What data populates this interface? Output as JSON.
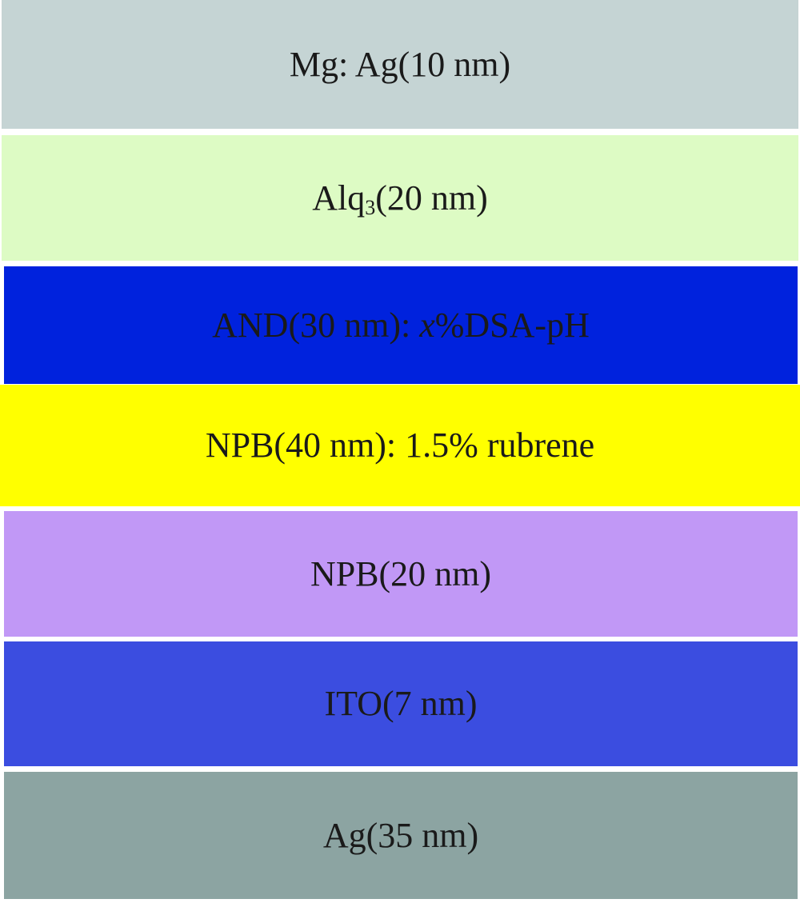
{
  "layers": [
    {
      "label": "Mg: Ag(10 nm)",
      "color": "#c5d4d4"
    },
    {
      "label_pre": "Alq",
      "label_sub": "3",
      "label_post": "(20 nm)",
      "color": "#ddfbc4"
    },
    {
      "label_pre": "AND(30 nm): ",
      "label_italic": "x",
      "label_post": "%DSA-pH",
      "color": "#0022dd"
    },
    {
      "label": "NPB(40 nm): 1.5% rubrene",
      "color": "#ffff00"
    },
    {
      "label": "NPB(20 nm)",
      "color": "#c198f6"
    },
    {
      "label": "ITO(7 nm)",
      "color": "#3b4de0"
    },
    {
      "label": "Ag(35 nm)",
      "color": "#8ca4a2"
    }
  ]
}
